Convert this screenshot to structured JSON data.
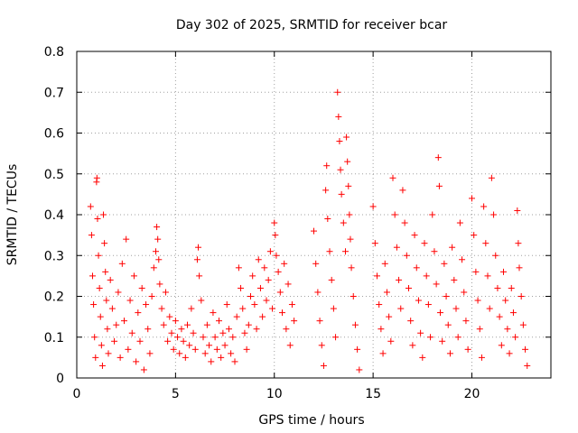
{
  "chart_data": {
    "type": "scatter",
    "title": "Day 302 of 2025, SRMTID for receiver bcar",
    "xlabel": "GPS time / hours",
    "ylabel": "SRMTID / TECUs",
    "xlim": [
      0,
      24
    ],
    "ylim": [
      0,
      0.8
    ],
    "xticks": [
      0,
      5,
      10,
      15,
      20
    ],
    "xtick_labels": [
      "0",
      "5",
      "10",
      "15",
      "20"
    ],
    "yticks": [
      0,
      0.1,
      0.2,
      0.3,
      0.4,
      0.5,
      0.6,
      0.7,
      0.8
    ],
    "ytick_labels": [
      "0",
      "0.1",
      "0.2",
      "0.3",
      "0.4",
      "0.5",
      "0.6",
      "0.7",
      "0.8"
    ],
    "grid": true,
    "marker": "+",
    "color": "#ff0000",
    "series": [
      {
        "name": "bcar",
        "points": [
          [
            0.7,
            0.42
          ],
          [
            0.75,
            0.35
          ],
          [
            0.8,
            0.25
          ],
          [
            0.85,
            0.18
          ],
          [
            0.9,
            0.1
          ],
          [
            0.95,
            0.05
          ],
          [
            1.0,
            0.48
          ],
          [
            1.02,
            0.49
          ],
          [
            1.05,
            0.39
          ],
          [
            1.1,
            0.3
          ],
          [
            1.15,
            0.22
          ],
          [
            1.2,
            0.15
          ],
          [
            1.25,
            0.08
          ],
          [
            1.3,
            0.03
          ],
          [
            1.35,
            0.4
          ],
          [
            1.4,
            0.33
          ],
          [
            1.45,
            0.26
          ],
          [
            1.5,
            0.19
          ],
          [
            1.55,
            0.12
          ],
          [
            1.6,
            0.06
          ],
          [
            1.7,
            0.24
          ],
          [
            1.8,
            0.17
          ],
          [
            1.9,
            0.09
          ],
          [
            2.0,
            0.13
          ],
          [
            2.1,
            0.21
          ],
          [
            2.2,
            0.05
          ],
          [
            2.3,
            0.28
          ],
          [
            2.4,
            0.14
          ],
          [
            2.5,
            0.34
          ],
          [
            2.6,
            0.07
          ],
          [
            2.7,
            0.19
          ],
          [
            2.8,
            0.11
          ],
          [
            2.9,
            0.25
          ],
          [
            3.0,
            0.04
          ],
          [
            3.1,
            0.16
          ],
          [
            3.2,
            0.09
          ],
          [
            3.3,
            0.22
          ],
          [
            3.4,
            0.02
          ],
          [
            3.5,
            0.18
          ],
          [
            3.6,
            0.12
          ],
          [
            3.7,
            0.06
          ],
          [
            3.8,
            0.2
          ],
          [
            3.9,
            0.27
          ],
          [
            4.0,
            0.31
          ],
          [
            4.05,
            0.37
          ],
          [
            4.1,
            0.34
          ],
          [
            4.15,
            0.29
          ],
          [
            4.2,
            0.23
          ],
          [
            4.3,
            0.17
          ],
          [
            4.4,
            0.13
          ],
          [
            4.5,
            0.21
          ],
          [
            4.6,
            0.09
          ],
          [
            4.7,
            0.15
          ],
          [
            4.8,
            0.11
          ],
          [
            4.9,
            0.07
          ],
          [
            5.0,
            0.14
          ],
          [
            5.1,
            0.1
          ],
          [
            5.2,
            0.06
          ],
          [
            5.3,
            0.12
          ],
          [
            5.4,
            0.09
          ],
          [
            5.5,
            0.05
          ],
          [
            5.6,
            0.13
          ],
          [
            5.7,
            0.08
          ],
          [
            5.8,
            0.17
          ],
          [
            5.9,
            0.11
          ],
          [
            6.0,
            0.07
          ],
          [
            6.1,
            0.29
          ],
          [
            6.15,
            0.32
          ],
          [
            6.2,
            0.25
          ],
          [
            6.3,
            0.19
          ],
          [
            6.4,
            0.1
          ],
          [
            6.5,
            0.06
          ],
          [
            6.6,
            0.13
          ],
          [
            6.7,
            0.08
          ],
          [
            6.8,
            0.04
          ],
          [
            6.9,
            0.16
          ],
          [
            7.0,
            0.1
          ],
          [
            7.1,
            0.07
          ],
          [
            7.2,
            0.14
          ],
          [
            7.3,
            0.05
          ],
          [
            7.4,
            0.11
          ],
          [
            7.5,
            0.08
          ],
          [
            7.6,
            0.18
          ],
          [
            7.7,
            0.12
          ],
          [
            7.8,
            0.06
          ],
          [
            7.9,
            0.1
          ],
          [
            8.0,
            0.04
          ],
          [
            8.1,
            0.15
          ],
          [
            8.2,
            0.27
          ],
          [
            8.3,
            0.22
          ],
          [
            8.4,
            0.17
          ],
          [
            8.5,
            0.11
          ],
          [
            8.6,
            0.07
          ],
          [
            8.7,
            0.13
          ],
          [
            8.8,
            0.2
          ],
          [
            8.9,
            0.25
          ],
          [
            9.0,
            0.18
          ],
          [
            9.1,
            0.12
          ],
          [
            9.2,
            0.29
          ],
          [
            9.3,
            0.22
          ],
          [
            9.4,
            0.15
          ],
          [
            9.5,
            0.27
          ],
          [
            9.6,
            0.19
          ],
          [
            9.7,
            0.24
          ],
          [
            9.8,
            0.31
          ],
          [
            9.9,
            0.17
          ],
          [
            10.0,
            0.38
          ],
          [
            10.05,
            0.35
          ],
          [
            10.1,
            0.3
          ],
          [
            10.2,
            0.26
          ],
          [
            10.3,
            0.21
          ],
          [
            10.4,
            0.16
          ],
          [
            10.5,
            0.28
          ],
          [
            10.6,
            0.12
          ],
          [
            10.7,
            0.23
          ],
          [
            10.8,
            0.08
          ],
          [
            10.9,
            0.18
          ],
          [
            11.0,
            0.14
          ],
          [
            12.0,
            0.36
          ],
          [
            12.1,
            0.28
          ],
          [
            12.2,
            0.21
          ],
          [
            12.3,
            0.14
          ],
          [
            12.4,
            0.08
          ],
          [
            12.5,
            0.03
          ],
          [
            12.6,
            0.46
          ],
          [
            12.65,
            0.52
          ],
          [
            12.7,
            0.39
          ],
          [
            12.8,
            0.31
          ],
          [
            12.9,
            0.24
          ],
          [
            13.0,
            0.17
          ],
          [
            13.1,
            0.1
          ],
          [
            13.2,
            0.7
          ],
          [
            13.25,
            0.64
          ],
          [
            13.3,
            0.58
          ],
          [
            13.35,
            0.51
          ],
          [
            13.4,
            0.45
          ],
          [
            13.5,
            0.38
          ],
          [
            13.6,
            0.31
          ],
          [
            13.65,
            0.59
          ],
          [
            13.7,
            0.53
          ],
          [
            13.75,
            0.47
          ],
          [
            13.8,
            0.4
          ],
          [
            13.85,
            0.34
          ],
          [
            13.9,
            0.27
          ],
          [
            14.0,
            0.2
          ],
          [
            14.1,
            0.13
          ],
          [
            14.2,
            0.07
          ],
          [
            14.3,
            0.02
          ],
          [
            15.0,
            0.42
          ],
          [
            15.1,
            0.33
          ],
          [
            15.2,
            0.25
          ],
          [
            15.3,
            0.18
          ],
          [
            15.4,
            0.12
          ],
          [
            15.5,
            0.06
          ],
          [
            15.6,
            0.28
          ],
          [
            15.7,
            0.21
          ],
          [
            15.8,
            0.15
          ],
          [
            15.9,
            0.09
          ],
          [
            16.0,
            0.49
          ],
          [
            16.1,
            0.4
          ],
          [
            16.2,
            0.32
          ],
          [
            16.3,
            0.24
          ],
          [
            16.4,
            0.17
          ],
          [
            16.5,
            0.46
          ],
          [
            16.6,
            0.38
          ],
          [
            16.7,
            0.3
          ],
          [
            16.8,
            0.22
          ],
          [
            16.9,
            0.14
          ],
          [
            17.0,
            0.08
          ],
          [
            17.1,
            0.35
          ],
          [
            17.2,
            0.27
          ],
          [
            17.3,
            0.19
          ],
          [
            17.4,
            0.11
          ],
          [
            17.5,
            0.05
          ],
          [
            17.6,
            0.33
          ],
          [
            17.7,
            0.25
          ],
          [
            17.8,
            0.18
          ],
          [
            17.9,
            0.1
          ],
          [
            18.0,
            0.4
          ],
          [
            18.1,
            0.31
          ],
          [
            18.2,
            0.23
          ],
          [
            18.3,
            0.54
          ],
          [
            18.35,
            0.47
          ],
          [
            18.4,
            0.16
          ],
          [
            18.5,
            0.09
          ],
          [
            18.6,
            0.28
          ],
          [
            18.7,
            0.2
          ],
          [
            18.8,
            0.13
          ],
          [
            18.9,
            0.06
          ],
          [
            19.0,
            0.32
          ],
          [
            19.1,
            0.24
          ],
          [
            19.2,
            0.17
          ],
          [
            19.3,
            0.1
          ],
          [
            19.4,
            0.38
          ],
          [
            19.5,
            0.29
          ],
          [
            19.6,
            0.21
          ],
          [
            19.7,
            0.14
          ],
          [
            19.8,
            0.07
          ],
          [
            20.0,
            0.44
          ],
          [
            20.1,
            0.35
          ],
          [
            20.2,
            0.26
          ],
          [
            20.3,
            0.19
          ],
          [
            20.4,
            0.12
          ],
          [
            20.5,
            0.05
          ],
          [
            20.6,
            0.42
          ],
          [
            20.7,
            0.33
          ],
          [
            20.8,
            0.25
          ],
          [
            20.9,
            0.17
          ],
          [
            21.0,
            0.49
          ],
          [
            21.1,
            0.4
          ],
          [
            21.2,
            0.3
          ],
          [
            21.3,
            0.22
          ],
          [
            21.4,
            0.15
          ],
          [
            21.5,
            0.08
          ],
          [
            21.6,
            0.26
          ],
          [
            21.7,
            0.19
          ],
          [
            21.8,
            0.12
          ],
          [
            21.9,
            0.06
          ],
          [
            22.0,
            0.22
          ],
          [
            22.1,
            0.16
          ],
          [
            22.2,
            0.1
          ],
          [
            22.3,
            0.41
          ],
          [
            22.35,
            0.33
          ],
          [
            22.4,
            0.27
          ],
          [
            22.5,
            0.2
          ],
          [
            22.6,
            0.13
          ],
          [
            22.7,
            0.07
          ],
          [
            22.8,
            0.03
          ]
        ]
      }
    ]
  }
}
